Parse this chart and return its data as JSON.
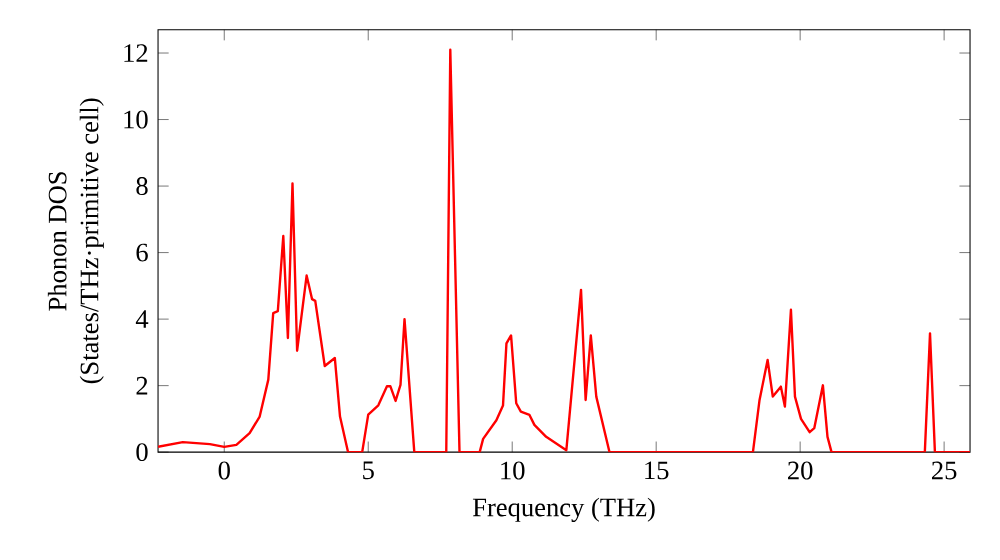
{
  "chart_data": {
    "type": "line",
    "xlabel": "Frequency (THz)",
    "ylabel": "Phonon DOS\n(States/THz·primitive cell)",
    "xlim": [
      -2.3,
      25.9
    ],
    "ylim": [
      0,
      12.7
    ],
    "xticks": [
      0,
      5,
      10,
      15,
      20,
      25
    ],
    "yticks": [
      0,
      2,
      4,
      6,
      8,
      10,
      12
    ],
    "grid": false,
    "series": [
      {
        "color": "#ff0000",
        "x": [
          -2.3,
          -1.44,
          -0.5,
          0,
          0.42,
          0.88,
          1.23,
          1.53,
          1.7,
          1.86,
          2.05,
          2.21,
          2.37,
          2.53,
          2.86,
          3.05,
          3.16,
          3.49,
          3.84,
          4.02,
          4.3,
          4.79,
          5.0,
          5.35,
          5.65,
          5.77,
          5.95,
          6.12,
          6.26,
          6.6,
          7.71,
          7.85,
          8.17,
          8.87,
          8.99,
          9.45,
          9.68,
          9.8,
          9.96,
          10.14,
          10.3,
          10.6,
          10.77,
          11.18,
          11.88,
          12.39,
          12.55,
          12.73,
          12.92,
          13.38,
          18.36,
          18.59,
          18.87,
          19.05,
          19.33,
          19.47,
          19.68,
          19.82,
          20.03,
          20.33,
          20.49,
          20.79,
          20.95,
          21.09,
          24.33,
          24.51,
          24.68,
          25.9
        ],
        "values": [
          0.16,
          0.3,
          0.24,
          0.16,
          0.22,
          0.57,
          1.07,
          2.18,
          4.18,
          4.24,
          6.5,
          3.43,
          8.08,
          3.05,
          5.31,
          4.6,
          4.55,
          2.59,
          2.83,
          1.07,
          0,
          0,
          1.13,
          1.41,
          1.98,
          1.98,
          1.54,
          2.02,
          4.0,
          0,
          0,
          12.1,
          0,
          0,
          0.4,
          0.96,
          1.4,
          3.27,
          3.51,
          1.47,
          1.22,
          1.12,
          0.82,
          0.46,
          0.06,
          4.88,
          1.57,
          3.51,
          1.67,
          0,
          0,
          1.57,
          2.77,
          1.67,
          1.97,
          1.37,
          4.28,
          1.67,
          1.0,
          0.6,
          0.72,
          2.01,
          0.46,
          0,
          0,
          3.57,
          0,
          0
        ]
      }
    ]
  }
}
